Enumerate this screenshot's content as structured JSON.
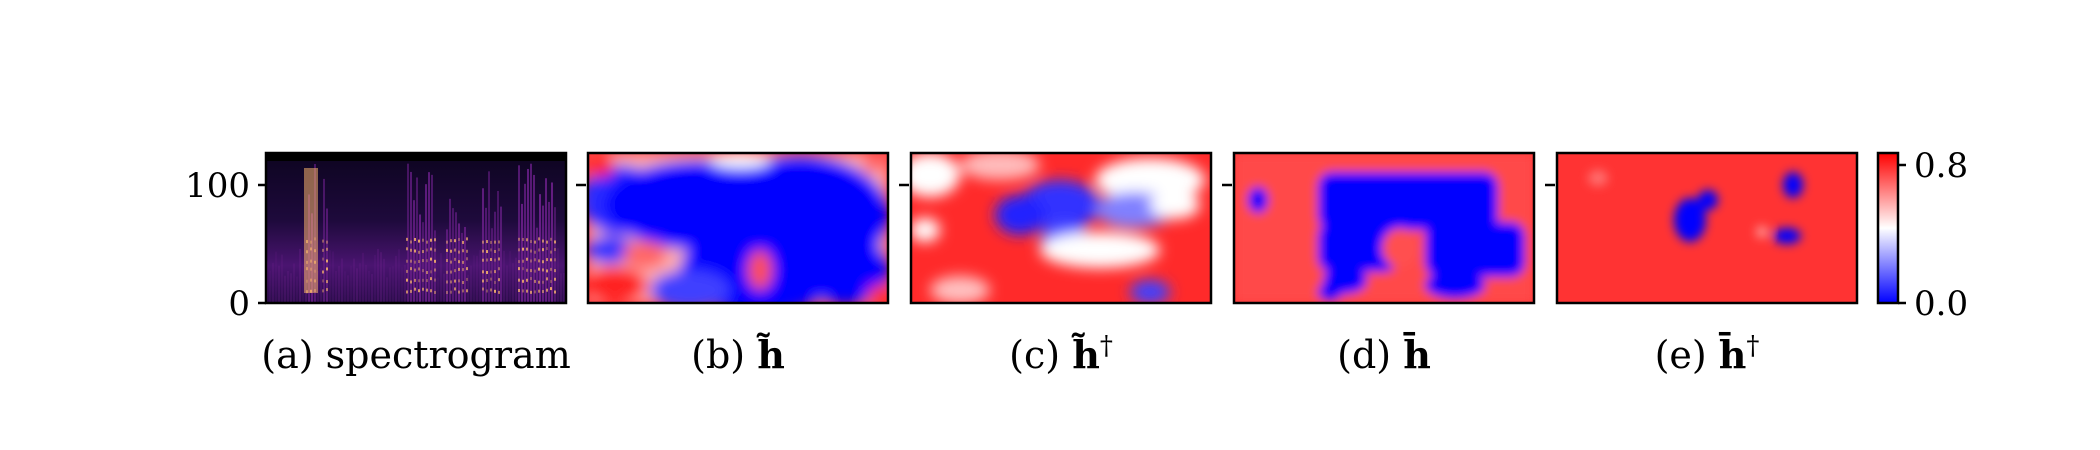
{
  "chart_data": [
    {
      "type": "heatmap",
      "caption": "(a) spectrogram",
      "ylim": [
        0,
        128
      ],
      "yticks": [
        0,
        100
      ],
      "colormap": "magma"
    },
    {
      "type": "heatmap",
      "caption_prefix": "(b) ",
      "caption_symbol": "h̃",
      "caption_sup": "",
      "colormap": "bwr",
      "clim": [
        0.0,
        0.8
      ]
    },
    {
      "type": "heatmap",
      "caption_prefix": "(c) ",
      "caption_symbol": "h̃",
      "caption_sup": "†",
      "colormap": "bwr",
      "clim": [
        0.0,
        0.8
      ]
    },
    {
      "type": "heatmap",
      "caption_prefix": "(d) ",
      "caption_symbol": "h̄",
      "caption_sup": "",
      "colormap": "bwr",
      "clim": [
        0.0,
        0.8
      ]
    },
    {
      "type": "heatmap",
      "caption_prefix": "(e) ",
      "caption_symbol": "h̄",
      "caption_sup": "†",
      "colormap": "bwr",
      "clim": [
        0.0,
        0.8
      ]
    }
  ],
  "colorbar": {
    "ticks": [
      "0.8",
      "0.0"
    ],
    "colors": {
      "high": "#ff0000",
      "mid": "#ffffff",
      "low": "#0000ff"
    }
  },
  "colors": {
    "red": "#ff2a2a",
    "blue": "#0000ff",
    "spectrogram_dark": "#1b0736",
    "spectrogram_mid": "#6b1f8a",
    "spectrogram_hot": "#f7b26b"
  }
}
